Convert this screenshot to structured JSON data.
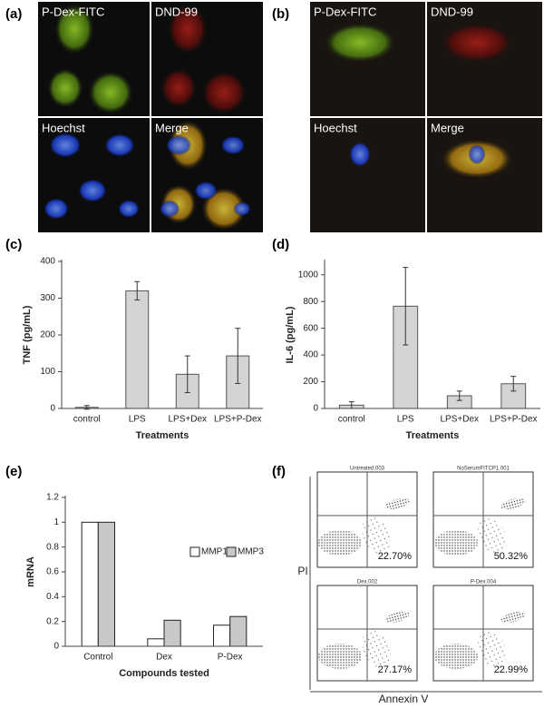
{
  "panel_labels": [
    "(a)",
    "(b)",
    "(c)",
    "(d)",
    "(e)",
    "(f)"
  ],
  "microscopy": [
    {
      "channels": [
        "P-Dex-FITC",
        "DND-99",
        "Hoechst",
        "Merge"
      ]
    },
    {
      "channels": [
        "P-Dex-FITC",
        "DND-99",
        "Hoechst",
        "Merge"
      ]
    }
  ],
  "chart_data": [
    {
      "type": "bar",
      "y_label": "TNF (pg/mL)",
      "x_label": "Treatments",
      "categories": [
        "control",
        "LPS",
        "LPS+Dex",
        "LPS+P-Dex"
      ],
      "values": [
        3,
        320,
        93,
        143
      ],
      "errors": [
        5,
        25,
        50,
        75
      ],
      "color": "#d4d4d4",
      "ylim": [
        0,
        400
      ],
      "yticks": [
        0,
        100,
        200,
        300,
        400
      ]
    },
    {
      "type": "bar",
      "y_label": "IL-6 (pg/mL)",
      "x_label": "Treatments",
      "categories": [
        "control",
        "LPS",
        "LPS+Dex",
        "LPS+P-Dex"
      ],
      "values": [
        25,
        765,
        95,
        185
      ],
      "errors": [
        25,
        290,
        35,
        55
      ],
      "color": "#d4d4d4",
      "ylim": [
        0,
        1100
      ],
      "yticks": [
        0,
        200,
        400,
        600,
        800,
        1000
      ]
    },
    {
      "type": "grouped_bar",
      "y_label": "mRNA",
      "x_label": "Compounds tested",
      "categories": [
        "Control",
        "Dex",
        "P-Dex"
      ],
      "series": [
        {
          "name": "MMP1",
          "color": "#ffffff",
          "values": [
            1,
            0.06,
            0.17
          ]
        },
        {
          "name": "MMP3",
          "color": "#c8c8c8",
          "values": [
            1,
            0.21,
            0.24
          ]
        }
      ],
      "legend": "upper right",
      "ylim": [
        0,
        1.2
      ],
      "yticks": [
        0,
        0.2,
        0.4,
        0.6,
        0.8,
        1,
        1.2
      ]
    }
  ],
  "flow": {
    "y_label": "PI",
    "x_label": "Annexin V",
    "plots": [
      {
        "title": "Untreated.003",
        "percent": "22.70%"
      },
      {
        "title": "NoSerumFITCP1.001",
        "percent": "50.32%"
      },
      {
        "title": "Dex.002",
        "percent": "27.17%"
      },
      {
        "title": "P-Dex.004",
        "percent": "22.99%"
      }
    ]
  }
}
